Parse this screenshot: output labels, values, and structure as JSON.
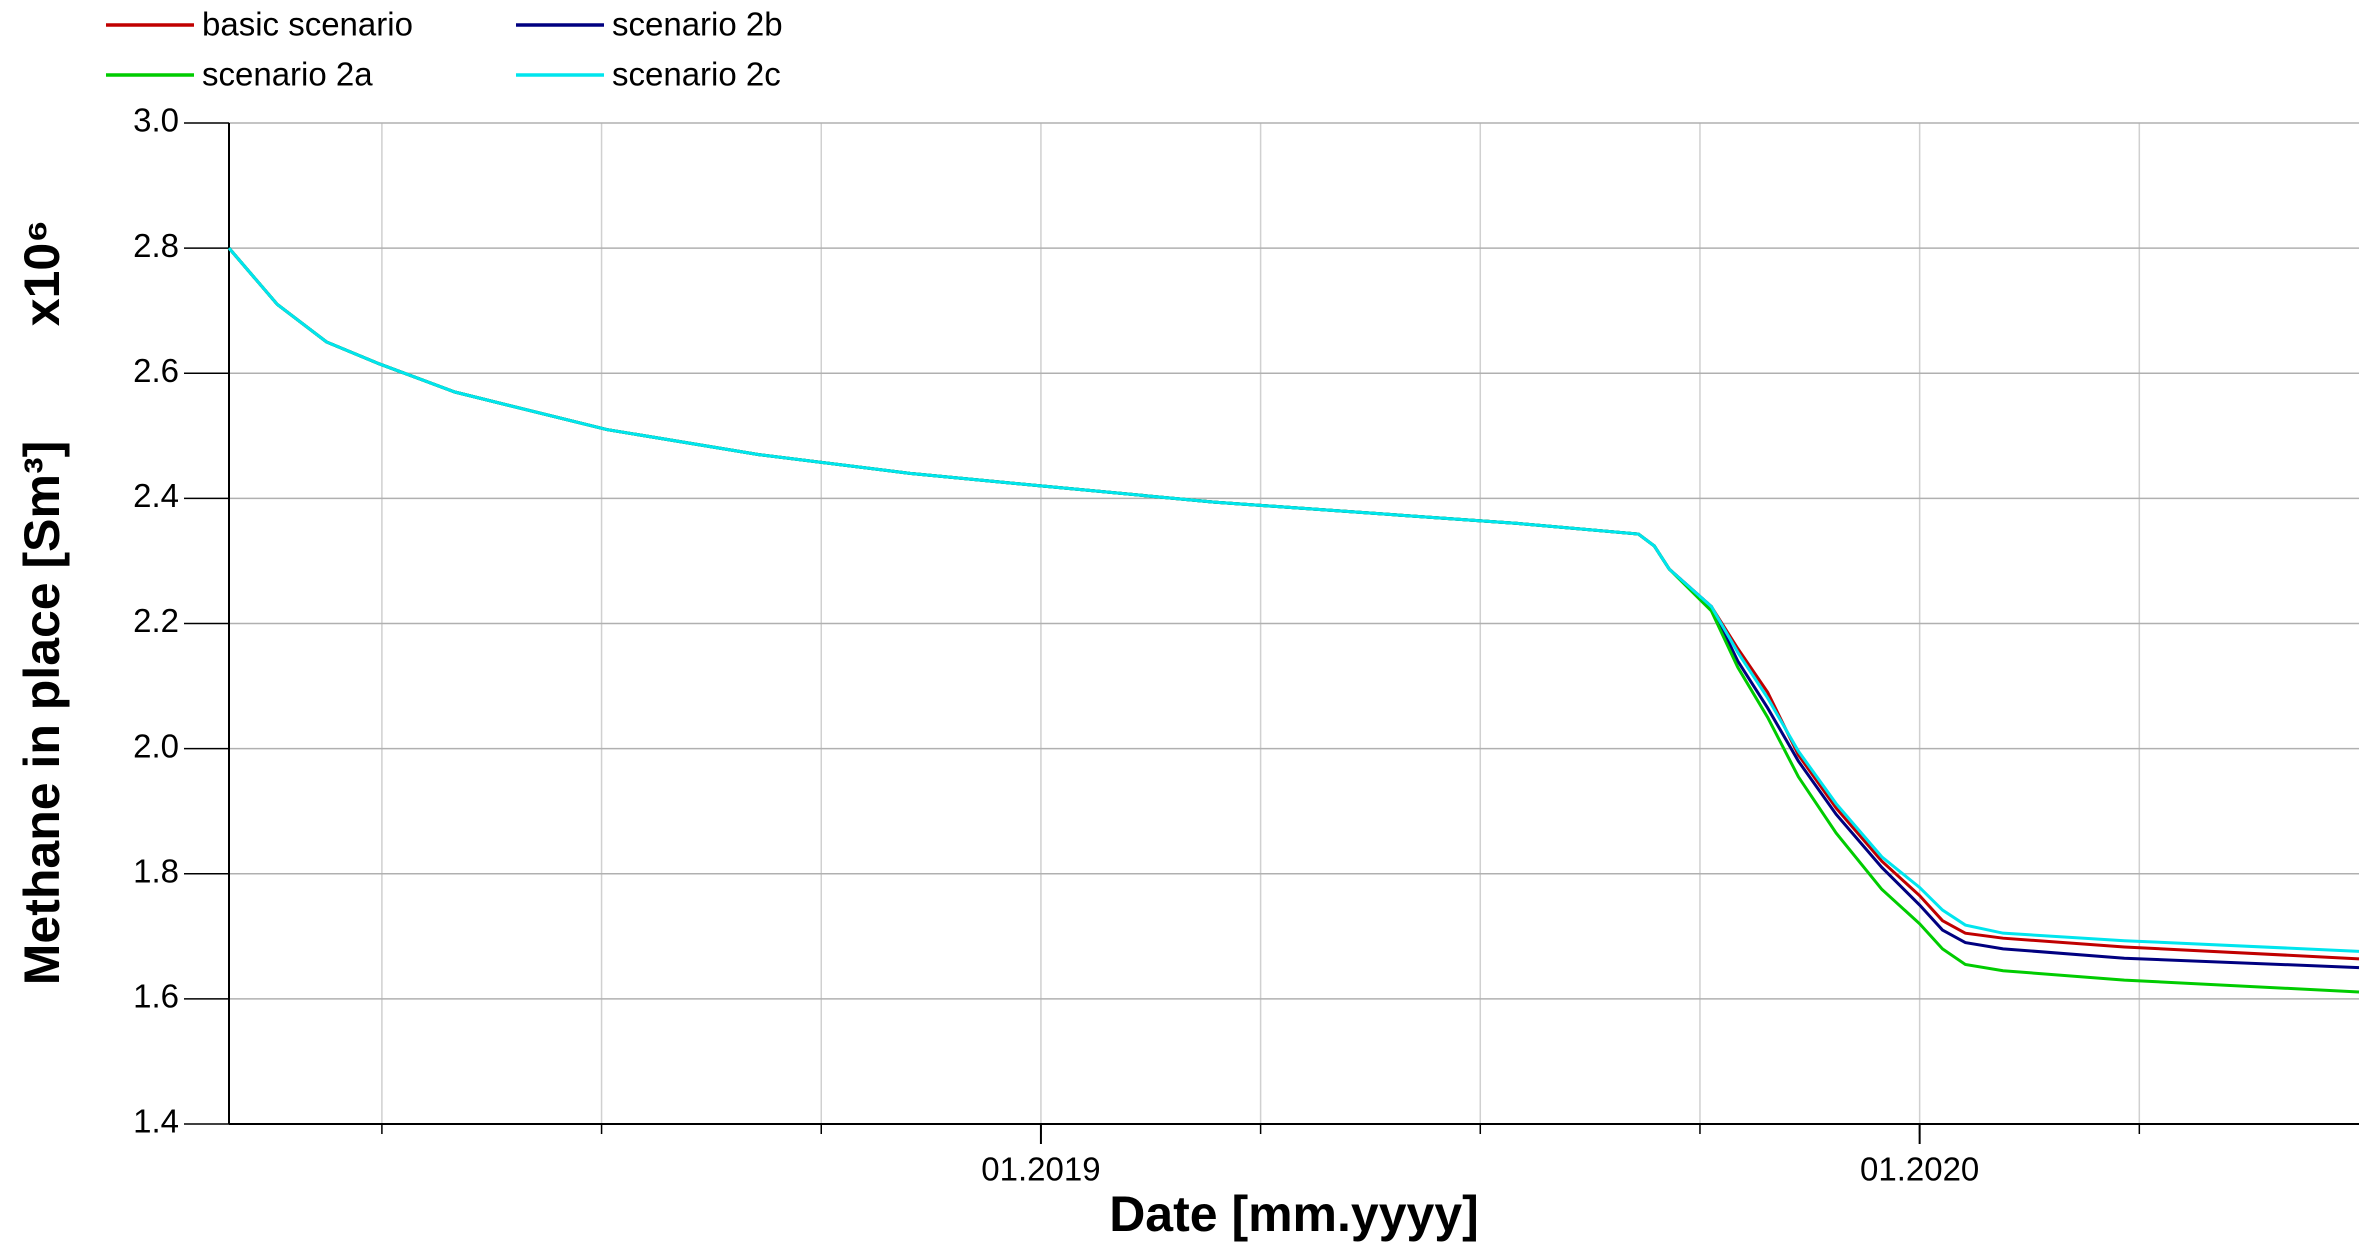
{
  "chart_data": {
    "type": "line",
    "xlabel": "Date [mm.yyyy]",
    "ylabel": "Methane in place [Sm³]",
    "yscale_label": "x10⁶",
    "x": [
      2018.076,
      2018.131,
      2018.187,
      2018.247,
      2018.333,
      2018.506,
      2018.679,
      2018.851,
      2019,
      2019.197,
      2019.37,
      2019.542,
      2019.68,
      2019.698,
      2019.715,
      2019.763,
      2019.793,
      2019.827,
      2019.862,
      2019.905,
      2019.957,
      2020,
      2020.026,
      2020.052,
      2020.095,
      2020.233,
      2020.5
    ],
    "series": [
      {
        "name": "basic scenario",
        "color": "#c00000",
        "values": [
          2.8,
          2.71,
          2.65,
          2.615,
          2.57,
          2.51,
          2.47,
          2.44,
          2.42,
          2.394,
          2.377,
          2.36,
          2.343,
          2.324,
          2.287,
          2.227,
          2.16,
          2.09,
          1.99,
          1.905,
          1.82,
          1.765,
          1.725,
          1.705,
          1.697,
          1.683,
          1.664
        ]
      },
      {
        "name": "scenario 2b",
        "color": "#000080",
        "values": [
          2.8,
          2.71,
          2.65,
          2.615,
          2.57,
          2.51,
          2.47,
          2.44,
          2.42,
          2.394,
          2.377,
          2.36,
          2.343,
          2.324,
          2.287,
          2.227,
          2.14,
          2.065,
          1.98,
          1.895,
          1.81,
          1.75,
          1.71,
          1.69,
          1.68,
          1.665,
          1.65
        ]
      },
      {
        "name": "scenario 2a",
        "color": "#00cc00",
        "values": [
          2.8,
          2.71,
          2.65,
          2.615,
          2.57,
          2.51,
          2.47,
          2.44,
          2.42,
          2.394,
          2.377,
          2.36,
          2.343,
          2.324,
          2.287,
          2.22,
          2.13,
          2.05,
          1.955,
          1.865,
          1.775,
          1.72,
          1.68,
          1.655,
          1.645,
          1.63,
          1.611
        ]
      },
      {
        "name": "scenario 2c",
        "color": "#00e5ee",
        "values": [
          2.8,
          2.71,
          2.65,
          2.615,
          2.57,
          2.51,
          2.47,
          2.44,
          2.42,
          2.394,
          2.377,
          2.36,
          2.343,
          2.324,
          2.287,
          2.227,
          2.154,
          2.081,
          1.996,
          1.912,
          1.827,
          1.778,
          1.742,
          1.718,
          1.705,
          1.693,
          1.676
        ]
      }
    ],
    "xlim": [
      2018.076,
      2020.5
    ],
    "xticks": [
      {
        "value": 2019,
        "label": "01.2019"
      },
      {
        "value": 2020,
        "label": "01.2020"
      }
    ],
    "xgrid": [
      2018.25,
      2018.5,
      2018.75,
      2019,
      2019.25,
      2019.5,
      2019.75,
      2020,
      2020.25
    ],
    "ylim": [
      1.4,
      3.0
    ],
    "yticks": [
      {
        "value": 1.4,
        "label": "1.4"
      },
      1.6,
      1.8,
      {
        "value": 2.0,
        "label": "2.0"
      },
      2.2,
      2.4,
      2.6,
      2.8,
      {
        "value": 3.0,
        "label": "3.0"
      }
    ],
    "grid": true,
    "legend": "top-left"
  }
}
